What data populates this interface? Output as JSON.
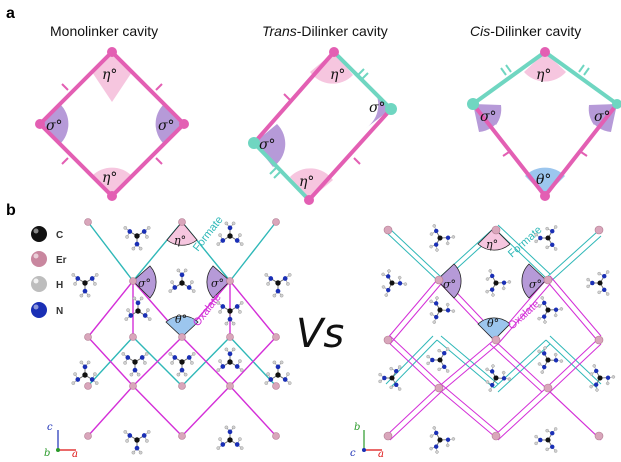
{
  "panel_a": {
    "label": "a",
    "titles": {
      "mono": "Monolinker cavity",
      "trans_prefix": "Trans",
      "trans_suffix": "-Dilinker cavity",
      "cis_prefix": "Cis",
      "cis_suffix": "-Dilinker cavity"
    },
    "angles": {
      "eta": "η°",
      "sigma": "σ°",
      "theta": "θ°"
    }
  },
  "panel_b": {
    "label": "b",
    "legend": [
      {
        "symbol": "C",
        "color": "#111111"
      },
      {
        "symbol": "Er",
        "color": "#c9879f"
      },
      {
        "symbol": "H",
        "color": "#bdbdbd"
      },
      {
        "symbol": "N",
        "color": "#1a2fb5"
      }
    ],
    "linkers": {
      "formate": "Formate",
      "oxalate": "Oxalate"
    },
    "vs": "Vs",
    "axes_left": {
      "up": "c",
      "origin": "b",
      "right": "a"
    },
    "axes_right": {
      "up": "b",
      "origin": "c",
      "right": "a"
    }
  },
  "colors": {
    "oxalate": "#e35fb3",
    "formate": "#6fd6c1",
    "oxalate_line": "#d42fd8",
    "formate_line": "#2fb8b8",
    "eta_fill": "#f6c6df",
    "sigma_fill": "#b69ad8",
    "theta_fill": "#9cc6ee"
  }
}
